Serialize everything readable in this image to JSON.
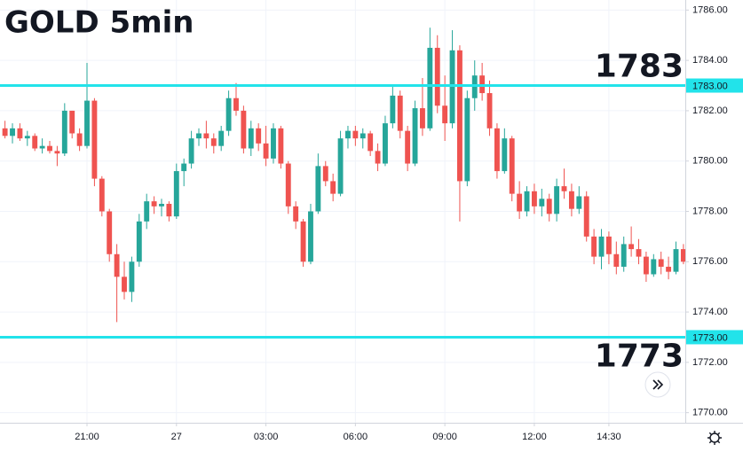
{
  "chart_data": {
    "type": "candlestick",
    "title": "GOLD 5min",
    "up_color": "#26a69a",
    "down_color": "#ef5350",
    "grid": true,
    "xlim": [
      -0.67,
      91.25
    ],
    "xticks": [
      {
        "value": 11,
        "label": "21:00"
      },
      {
        "value": 23,
        "label": "27"
      },
      {
        "value": 35,
        "label": "03:00"
      },
      {
        "value": 47,
        "label": "06:00"
      },
      {
        "value": 59,
        "label": "09:00"
      },
      {
        "value": 71,
        "label": "12:00"
      },
      {
        "value": 81,
        "label": "14:30"
      }
    ],
    "ylim": [
      1769.6,
      1786.4
    ],
    "yticks": [
      {
        "value": 1770,
        "label": "1770.00"
      },
      {
        "value": 1772,
        "label": "1772.00"
      },
      {
        "value": 1774,
        "label": "1774.00"
      },
      {
        "value": 1776,
        "label": "1776.00"
      },
      {
        "value": 1778,
        "label": "1778.00"
      },
      {
        "value": 1780,
        "label": "1780.00"
      },
      {
        "value": 1782,
        "label": "1782.00"
      },
      {
        "value": 1784,
        "label": "1784.00"
      },
      {
        "value": 1786,
        "label": "1786.00"
      }
    ],
    "levels": [
      {
        "value": 1783,
        "label": "1783.00",
        "color": "#22e3ea"
      },
      {
        "value": 1773,
        "label": "1773.00",
        "color": "#22e3ea"
      }
    ],
    "open": [
      1781.3,
      1781.0,
      1781.3,
      1780.9,
      1781.0,
      1780.5,
      1780.6,
      1780.4,
      1780.3,
      1782.0,
      1781.1,
      1780.6,
      1782.4,
      1779.3,
      1778.0,
      1776.3,
      1775.4,
      1774.8,
      1776.0,
      1777.6,
      1778.4,
      1778.2,
      1778.3,
      1777.8,
      1779.6,
      1779.9,
      1780.9,
      1781.1,
      1780.9,
      1780.6,
      1781.2,
      1782.5,
      1782.0,
      1780.5,
      1781.3,
      1780.7,
      1780.1,
      1781.3,
      1779.9,
      1778.2,
      1777.6,
      1776.0,
      1778.0,
      1779.8,
      1779.2,
      1778.7,
      1780.9,
      1781.2,
      1780.9,
      1781.1,
      1780.4,
      1779.9,
      1781.5,
      1782.6,
      1781.2,
      1779.9,
      1782.1,
      1781.3,
      1784.5,
      1782.2,
      1781.5,
      1784.4,
      1779.2,
      1782.5,
      1783.4,
      1782.7,
      1781.3,
      1779.6,
      1780.9,
      1778.7,
      1778.0,
      1778.8,
      1778.2,
      1778.5,
      1777.9,
      1779.0,
      1778.8,
      1778.1,
      1778.6,
      1777.0,
      1776.2,
      1777.0,
      1776.3,
      1775.8,
      1776.7,
      1776.5,
      1776.2,
      1775.5,
      1776.1,
      1775.8,
      1775.6,
      1776.5
    ],
    "high": [
      1781.6,
      1781.5,
      1781.5,
      1781.2,
      1781.1,
      1780.9,
      1780.8,
      1780.6,
      1782.3,
      1782.0,
      1781.3,
      1783.9,
      1782.5,
      1779.4,
      1778.1,
      1776.7,
      1776.0,
      1776.2,
      1777.9,
      1778.7,
      1778.6,
      1778.5,
      1778.4,
      1779.9,
      1780.1,
      1781.2,
      1781.3,
      1781.6,
      1781.1,
      1781.4,
      1782.8,
      1783.1,
      1782.2,
      1781.6,
      1781.5,
      1781.4,
      1781.5,
      1781.4,
      1780.0,
      1778.4,
      1777.7,
      1778.3,
      1780.3,
      1780.0,
      1779.5,
      1781.2,
      1781.4,
      1781.4,
      1781.3,
      1781.2,
      1780.7,
      1781.8,
      1783.0,
      1782.8,
      1781.4,
      1782.4,
      1783.3,
      1785.3,
      1785.0,
      1783.4,
      1785.2,
      1784.6,
      1782.8,
      1784.0,
      1783.9,
      1783.2,
      1781.5,
      1781.3,
      1781.0,
      1779.2,
      1779.0,
      1779.1,
      1778.9,
      1778.7,
      1779.3,
      1779.7,
      1779.1,
      1779.0,
      1778.8,
      1777.3,
      1777.3,
      1777.2,
      1776.8,
      1777.0,
      1777.4,
      1776.9,
      1776.4,
      1776.3,
      1776.4,
      1776.2,
      1776.8,
      1776.7
    ],
    "low": [
      1780.9,
      1780.7,
      1780.8,
      1780.6,
      1780.4,
      1780.3,
      1780.3,
      1779.8,
      1780.2,
      1780.9,
      1780.4,
      1780.5,
      1779.0,
      1777.8,
      1776.0,
      1773.6,
      1774.5,
      1774.4,
      1775.8,
      1777.3,
      1777.9,
      1777.8,
      1777.6,
      1777.7,
      1779.0,
      1779.7,
      1780.6,
      1780.5,
      1780.3,
      1780.4,
      1781.0,
      1781.8,
      1780.3,
      1780.2,
      1780.4,
      1779.8,
      1779.9,
      1779.7,
      1777.9,
      1777.3,
      1775.8,
      1775.9,
      1777.9,
      1779.0,
      1778.4,
      1778.6,
      1780.5,
      1780.6,
      1780.5,
      1780.2,
      1779.6,
      1779.8,
      1781.3,
      1780.9,
      1779.6,
      1779.8,
      1781.0,
      1781.2,
      1781.9,
      1780.8,
      1781.3,
      1777.6,
      1779.0,
      1782.0,
      1782.4,
      1781.0,
      1779.3,
      1779.5,
      1778.4,
      1777.7,
      1777.8,
      1777.9,
      1777.8,
      1777.6,
      1777.6,
      1778.5,
      1777.8,
      1777.9,
      1776.8,
      1775.9,
      1775.7,
      1775.9,
      1775.5,
      1775.6,
      1776.2,
      1775.9,
      1775.2,
      1775.4,
      1775.5,
      1775.3,
      1775.5,
      1775.9
    ],
    "close": [
      1781.0,
      1781.3,
      1780.9,
      1781.0,
      1780.5,
      1780.6,
      1780.4,
      1780.3,
      1782.0,
      1781.1,
      1780.6,
      1782.4,
      1779.3,
      1778.0,
      1776.3,
      1775.4,
      1774.8,
      1776.0,
      1777.6,
      1778.4,
      1778.2,
      1778.3,
      1777.8,
      1779.6,
      1779.9,
      1780.9,
      1781.1,
      1780.9,
      1780.6,
      1781.2,
      1782.5,
      1782.0,
      1780.5,
      1781.3,
      1780.7,
      1780.1,
      1781.3,
      1779.9,
      1778.2,
      1777.6,
      1776.0,
      1778.0,
      1779.8,
      1779.2,
      1778.7,
      1780.9,
      1781.2,
      1780.9,
      1781.1,
      1780.4,
      1779.9,
      1781.5,
      1782.6,
      1781.2,
      1779.9,
      1782.1,
      1781.3,
      1784.5,
      1782.2,
      1781.5,
      1784.4,
      1779.2,
      1782.5,
      1783.4,
      1782.7,
      1781.3,
      1779.6,
      1780.9,
      1778.7,
      1778.0,
      1778.8,
      1778.2,
      1778.5,
      1777.9,
      1779.0,
      1778.8,
      1778.1,
      1778.6,
      1777.0,
      1776.2,
      1777.0,
      1776.3,
      1775.8,
      1776.7,
      1776.5,
      1776.2,
      1775.5,
      1776.1,
      1775.8,
      1775.6,
      1776.5,
      1776.0
    ]
  }
}
